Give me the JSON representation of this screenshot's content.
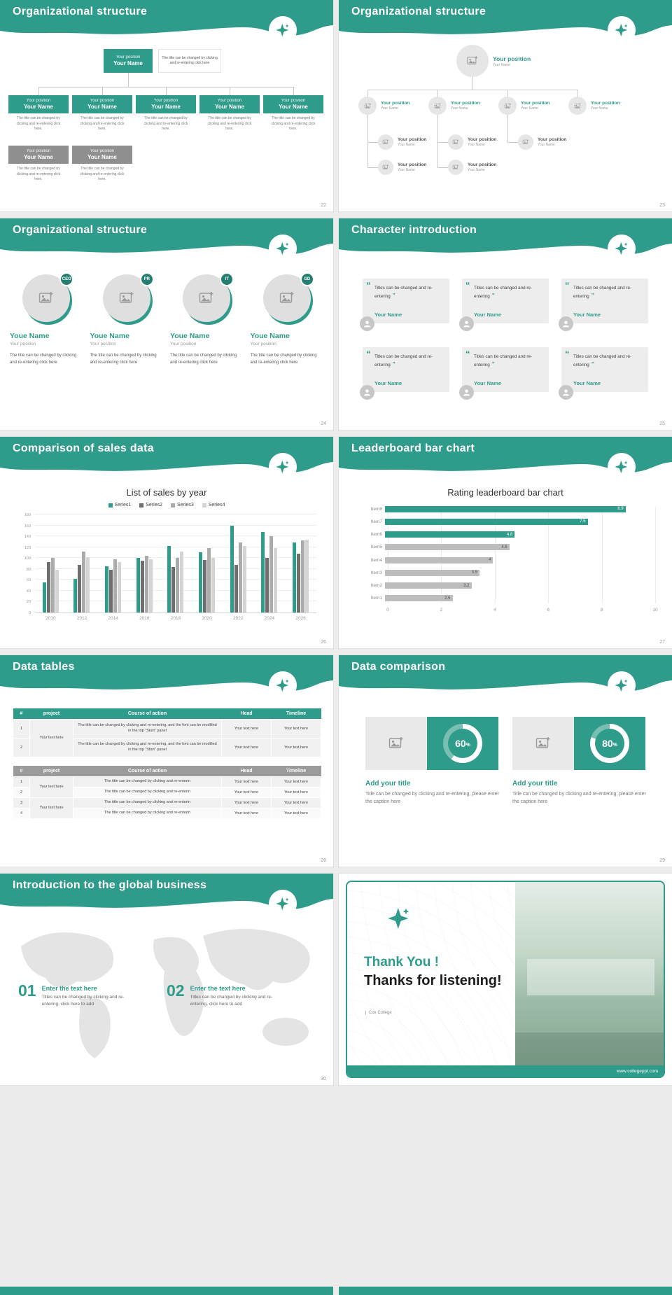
{
  "theme": {
    "teal": "#2F9C8B",
    "teal_dark": "#257F70",
    "gray_box": "#8F8F8F",
    "page_bg": "#ECECEC",
    "card_bg": "#EDEDED"
  },
  "icons": {
    "logo": "sparkle-4-point-star",
    "image_placeholder": "picture-with-plus",
    "avatar": "user-silhouette",
    "open_quote": "“",
    "close_quote": "”"
  },
  "slides": {
    "s22": {
      "title": "Organizational structure",
      "page": "22",
      "root": {
        "position": "Your position",
        "name": "Your Name"
      },
      "root_note": "The title can be changed by clicking and re-entering click here",
      "nodes": [
        {
          "position": "Your position",
          "name": "Your Name",
          "note": "The title can be changed by clicking and re-entering click here."
        },
        {
          "position": "Your position",
          "name": "Your Name",
          "note": "The title can be changed by clicking and re-entering click here."
        },
        {
          "position": "Your position",
          "name": "Your Name",
          "note": "The title can be changed by clicking and re-entering click here."
        },
        {
          "position": "Your position",
          "name": "Your Name",
          "note": "The title can be changed by clicking and re-entering click here."
        },
        {
          "position": "Your position",
          "name": "Your Name",
          "note": "The title can be changed by clicking and re-entering click here."
        }
      ],
      "subnodes": [
        {
          "position": "Your position",
          "name": "Your Name",
          "note": "The title can be changed by clicking and re-entering click here."
        },
        {
          "position": "Your position",
          "name": "Your Name",
          "note": "The title can be changed by clicking and re-entering click here."
        }
      ]
    },
    "s23": {
      "title": "Organizational structure",
      "page": "23",
      "root": {
        "position": "Your position",
        "name": "Your Name"
      },
      "level1": [
        {
          "position": "Your position",
          "name": "Your Name"
        },
        {
          "position": "Your position",
          "name": "Your Name"
        },
        {
          "position": "Your position",
          "name": "Your Name"
        },
        {
          "position": "Your position",
          "name": "Your Name"
        }
      ],
      "level2": [
        {
          "position": "Your position",
          "name": "Your Name"
        },
        {
          "position": "Your position",
          "name": "Your Name"
        },
        {
          "position": "Your position",
          "name": "Your Name"
        }
      ],
      "level3": [
        {
          "position": "Your position",
          "name": "Your Name"
        },
        {
          "position": "Your position",
          "name": "Your Name"
        }
      ]
    },
    "s24": {
      "title": "Organizational structure",
      "page": "24",
      "members": [
        {
          "badge": "CEO",
          "name": "Youe Name",
          "position": "Your position",
          "note": "The title can be changed by clicking and re-entering click here"
        },
        {
          "badge": "PR",
          "name": "Youe Name",
          "position": "Your position",
          "note": "The title can be changed by clicking and re-entering click here"
        },
        {
          "badge": "IT",
          "name": "Youe Name",
          "position": "Your position",
          "note": "The title can be changed by clicking and re-entering click here"
        },
        {
          "badge": "GD",
          "name": "Youe Name",
          "position": "Your position",
          "note": "The title can be changed by clicking and re-entering click here"
        }
      ]
    },
    "s25": {
      "title": "Character introduction",
      "page": "25",
      "open_quote": "“",
      "close_quote": "”",
      "cards": [
        {
          "quote": "Titles can be changed and re-entering",
          "name": "Your Name"
        },
        {
          "quote": "Titles can be changed and re-entering",
          "name": "Your Name"
        },
        {
          "quote": "Titles can be changed and re-entering",
          "name": "Your Name"
        },
        {
          "quote": "Titles can be changed and re-entering",
          "name": "Your Name"
        },
        {
          "quote": "Titles can be changed and re-entering",
          "name": "Your Name"
        },
        {
          "quote": "Titles can be changed and re-entering",
          "name": "Your Name"
        }
      ]
    },
    "s26": {
      "title": "Comparison of sales data",
      "page": "26"
    },
    "s27": {
      "title": "Leaderboard bar chart",
      "page": "27"
    },
    "s28": {
      "title": "Data tables",
      "page": "28",
      "table1": {
        "headers": [
          "#",
          "project",
          "Course of action",
          "Head",
          "Timeline"
        ],
        "project": "Your text here",
        "rows": [
          {
            "num": "1",
            "action": "The title can be changed by clicking and re-entering, and the font can be modified in the top \"Start\" panel",
            "head": "Your text here",
            "timeline": "Your text here"
          },
          {
            "num": "2",
            "action": "The title can be changed by clicking and re-entering, and the font can be modified in the top \"Start\" panel",
            "head": "Your text here",
            "timeline": "Your text here"
          }
        ]
      },
      "table2": {
        "headers": [
          "#",
          "project",
          "Course of action",
          "Head",
          "Timeline"
        ],
        "projects": [
          "Your text here",
          "Your text here"
        ],
        "rows": [
          {
            "num": "1",
            "action": "The title can be changed by clicking and re-enterin",
            "head": "Your text here",
            "timeline": "Your text here"
          },
          {
            "num": "2",
            "action": "The title can be changed by clicking and re-enterin",
            "head": "Your text here",
            "timeline": "Your text here"
          },
          {
            "num": "3",
            "action": "The title can be changed by clicking and re-enterin",
            "head": "Your text here",
            "timeline": "Your text here"
          },
          {
            "num": "4",
            "action": "The title can be changed by clicking and re-enterin",
            "head": "Your text here",
            "timeline": "Your text here"
          }
        ]
      }
    },
    "s29": {
      "title": "Data comparison",
      "page": "29",
      "pct_sign": "%",
      "panels": [
        {
          "percent": 60,
          "title": "Add your title",
          "caption": "Title can be changed by clicking and re-entering, please enter the caption here"
        },
        {
          "percent": 80,
          "title": "Add your title",
          "caption": "Title can be changed by clicking and re-entering, please enter the caption here"
        }
      ]
    },
    "s30": {
      "title": "Introduction to the global business",
      "page": "30",
      "items": [
        {
          "num": "01",
          "title": "Enter the text here",
          "caption": "Titles can be changed by clicking and re-entering, click here to add"
        },
        {
          "num": "02",
          "title": "Enter the text here",
          "caption": "Titles can be changed by clicking and re-entering, click here to add"
        }
      ]
    },
    "thanks": {
      "title1": "Thank You !",
      "title2": "Thanks for listening!",
      "org": "Cox College",
      "url": "www.collegeppt.com"
    }
  },
  "chart_data": [
    {
      "type": "bar",
      "title": "List of sales by year",
      "categories": [
        "2010",
        "2012",
        "2014",
        "2016",
        "2018",
        "2020",
        "2022",
        "2024",
        "2026"
      ],
      "series": [
        {
          "name": "Series1",
          "color": "#2F9C8B",
          "values": [
            55,
            62,
            85,
            100,
            122,
            110,
            160,
            148,
            128
          ]
        },
        {
          "name": "Series2",
          "color": "#6E6E6E",
          "values": [
            92,
            88,
            78,
            95,
            84,
            96,
            88,
            100,
            108
          ]
        },
        {
          "name": "Series3",
          "color": "#ABABAB",
          "values": [
            100,
            112,
            98,
            104,
            100,
            118,
            128,
            140,
            132
          ]
        },
        {
          "name": "Series4",
          "color": "#D4D4D4",
          "values": [
            78,
            102,
            92,
            98,
            112,
            100,
            122,
            118,
            134
          ]
        }
      ],
      "xlabel": "",
      "ylabel": "",
      "ylim": [
        0,
        180
      ],
      "yticks": [
        0,
        20,
        40,
        60,
        80,
        100,
        120,
        140,
        160,
        180
      ],
      "grid": true,
      "legend_position": "top"
    },
    {
      "type": "bar",
      "orientation": "horizontal",
      "title": "Rating leaderboard bar chart",
      "categories": [
        "Item8",
        "Item7",
        "Item6",
        "Item5",
        "Item4",
        "Item3",
        "Item2",
        "Item1"
      ],
      "values": [
        8.9,
        7.5,
        4.8,
        4.6,
        4,
        3.5,
        3.2,
        2.5
      ],
      "bar_colors": [
        "#2F9C8B",
        "#2F9C8B",
        "#2F9C8B",
        "#BDBDBD",
        "#BDBDBD",
        "#BDBDBD",
        "#BDBDBD",
        "#BDBDBD"
      ],
      "value_label_colors": [
        "#FFFFFF",
        "#FFFFFF",
        "#FFFFFF",
        "#4A4A4A",
        "#4A4A4A",
        "#4A4A4A",
        "#4A4A4A",
        "#4A4A4A"
      ],
      "xlim": [
        0,
        10
      ],
      "xticks": [
        0,
        2,
        4,
        6,
        8,
        10
      ],
      "grid": true,
      "legend_position": "none"
    }
  ]
}
